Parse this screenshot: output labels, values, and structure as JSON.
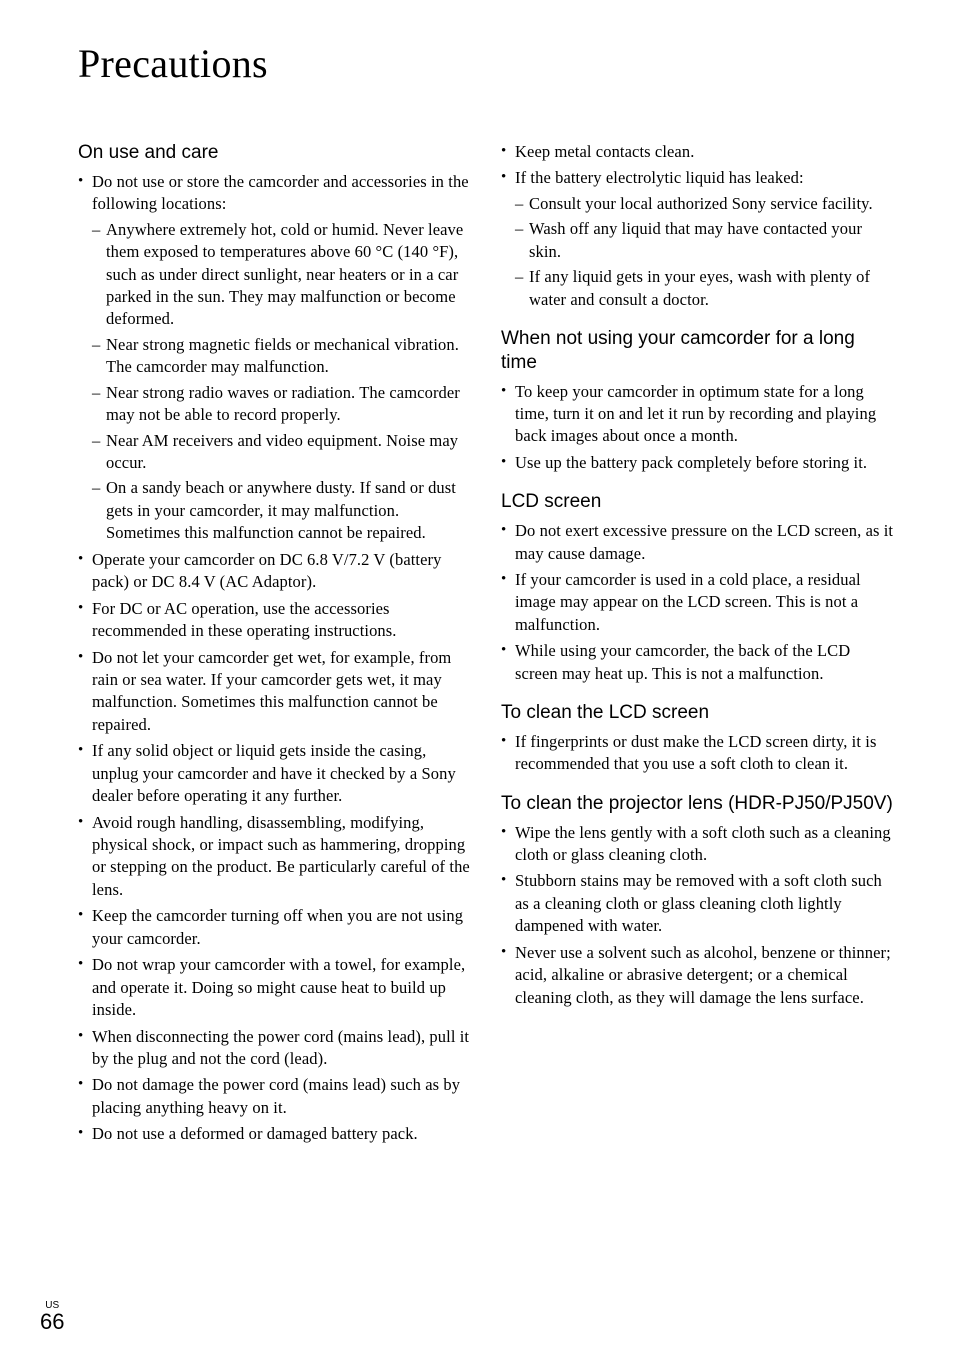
{
  "title": "Precautions",
  "left": {
    "h1": "On use and care",
    "b1": "Do not use or store the camcorder and accessories in the following locations:",
    "d1": "Anywhere extremely hot, cold or humid. Never leave them exposed to temperatures above 60 °C (140 °F), such as under direct sunlight, near heaters or in a car parked in the sun. They may malfunction or become deformed.",
    "d2": "Near strong magnetic fields or mechanical vibration. The camcorder may malfunction.",
    "d3": "Near strong radio waves or radiation. The camcorder may not be able to record properly.",
    "d4": "Near AM receivers and video equipment. Noise may occur.",
    "d5": "On a sandy beach or anywhere dusty. If sand or dust gets in your camcorder, it may malfunction. Sometimes this malfunction cannot be repaired.",
    "b2": "Operate your camcorder on DC 6.8 V/7.2 V (battery pack) or DC 8.4 V (AC Adaptor).",
    "b3": "For DC or AC operation, use the accessories recommended in these operating instructions.",
    "b4": "Do not let your camcorder get wet, for example, from rain or sea water. If your camcorder gets wet, it may malfunction. Sometimes this malfunction cannot be repaired.",
    "b5": "If any solid object or liquid gets inside the casing, unplug your camcorder and have it checked by a Sony dealer before operating it any further.",
    "b6": "Avoid rough handling, disassembling, modifying, physical shock, or impact such as hammering, dropping or stepping on the product. Be particularly careful of the lens.",
    "b7": "Keep the camcorder turning off when you are not using your camcorder.",
    "b8": "Do not wrap your camcorder with a towel, for example, and operate it. Doing so might cause heat to build up inside.",
    "b9": "When disconnecting the power cord (mains lead), pull it by the plug and not the cord (lead).",
    "b10": "Do not damage the power cord (mains lead) such as by placing anything heavy on it.",
    "b11": "Do not use a deformed or damaged battery pack."
  },
  "right": {
    "b1": "Keep metal contacts clean.",
    "b2": "If the battery electrolytic liquid has leaked:",
    "d1": "Consult your local authorized Sony service facility.",
    "d2": "Wash off any liquid that may have contacted your skin.",
    "d3": "If any liquid gets in your eyes, wash with plenty of water and consult a doctor.",
    "h2": "When not using your camcorder for a long time",
    "b3": "To keep your camcorder in optimum state for a long time, turn it on and let it run by recording and playing back images about once a month.",
    "b4": "Use up the battery pack completely before storing it.",
    "h3": "LCD screen",
    "b5": "Do not exert excessive pressure on the LCD screen, as it may cause damage.",
    "b6": "If your camcorder is used in a cold place, a residual image may appear on the LCD screen. This is not a malfunction.",
    "b7": "While using your camcorder, the back of the LCD screen may heat up. This is not a malfunction.",
    "h4": "To clean the LCD screen",
    "b8": "If fingerprints or dust make the LCD screen dirty, it is recommended that you use a soft cloth to clean it.",
    "h5": "To clean the projector lens (HDR-PJ50/PJ50V)",
    "b9": "Wipe the lens gently with a soft cloth such as a cleaning cloth or glass cleaning cloth.",
    "b10": "Stubborn stains may be removed with a soft cloth such as a cleaning cloth or glass cleaning cloth lightly dampened with water.",
    "b11": " Never use a solvent such as alcohol, benzene or thinner; acid, alkaline or abrasive detergent; or a chemical cleaning cloth, as they will damage the lens surface."
  },
  "footer": {
    "region": "US",
    "page": "66"
  }
}
